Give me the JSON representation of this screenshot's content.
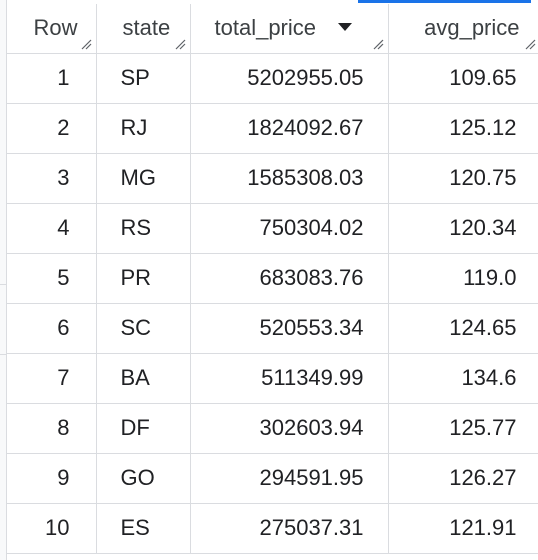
{
  "columns": [
    {
      "key": "row",
      "label": "Row"
    },
    {
      "key": "state",
      "label": "state"
    },
    {
      "key": "total_price",
      "label": "total_price",
      "sorted": "descending"
    },
    {
      "key": "avg_price",
      "label": "avg_price"
    }
  ],
  "rows": [
    {
      "row": "1",
      "state": "SP",
      "total_price": "5202955.05",
      "avg_price": "109.65"
    },
    {
      "row": "2",
      "state": "RJ",
      "total_price": "1824092.67",
      "avg_price": "125.12"
    },
    {
      "row": "3",
      "state": "MG",
      "total_price": "1585308.03",
      "avg_price": "120.75"
    },
    {
      "row": "4",
      "state": "RS",
      "total_price": "750304.02",
      "avg_price": "120.34"
    },
    {
      "row": "5",
      "state": "PR",
      "total_price": "683083.76",
      "avg_price": "119.0"
    },
    {
      "row": "6",
      "state": "SC",
      "total_price": "520553.34",
      "avg_price": "124.65"
    },
    {
      "row": "7",
      "state": "BA",
      "total_price": "511349.99",
      "avg_price": "134.6"
    },
    {
      "row": "8",
      "state": "DF",
      "total_price": "302603.94",
      "avg_price": "125.77"
    },
    {
      "row": "9",
      "state": "GO",
      "total_price": "294591.95",
      "avg_price": "126.27"
    },
    {
      "row": "10",
      "state": "ES",
      "total_price": "275037.31",
      "avg_price": "121.91"
    }
  ],
  "colors": {
    "grid_line": "#dadce0",
    "selection_accent": "#1a73e8",
    "text": "#202124"
  },
  "icons": {
    "sort": "sort-descending-icon",
    "resize": "column-resize-handle-icon"
  }
}
